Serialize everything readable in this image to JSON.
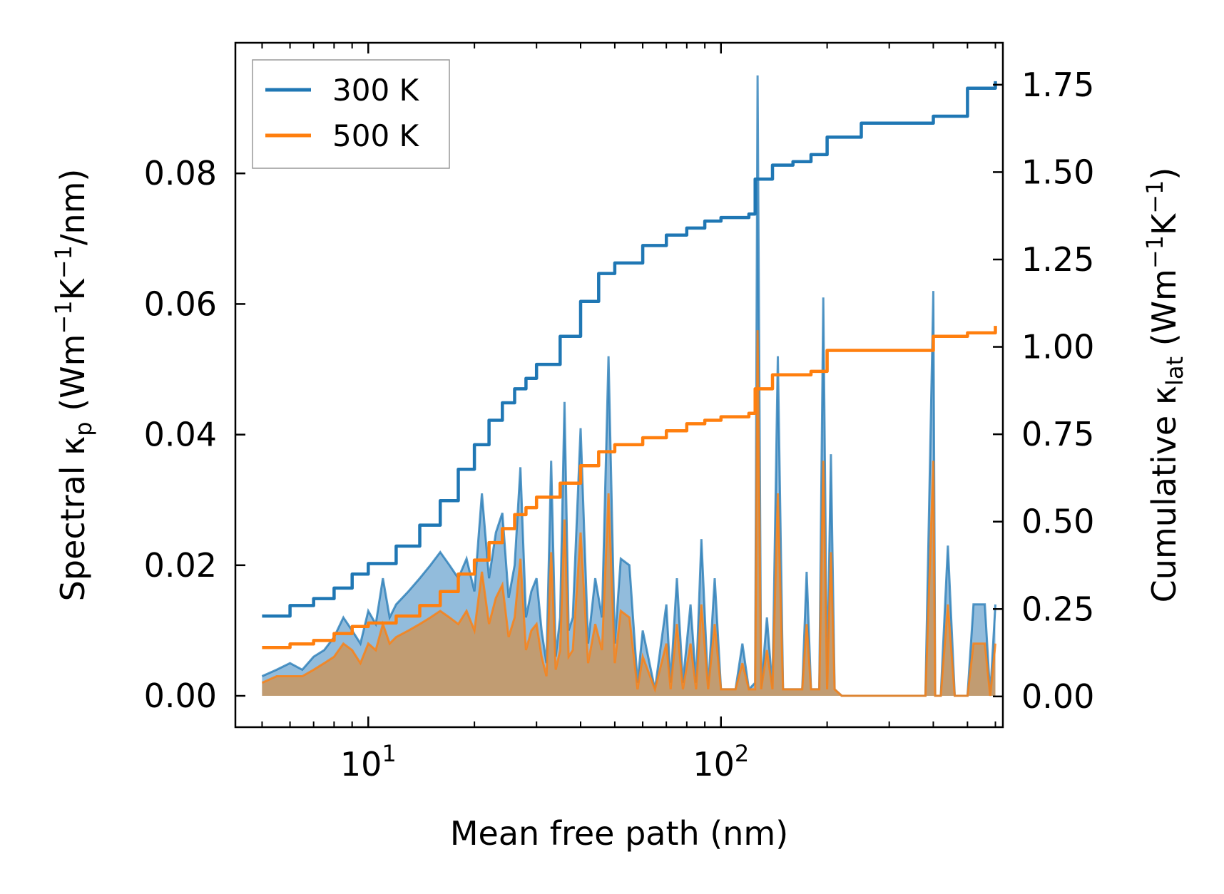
{
  "chart_data": {
    "type": "line",
    "xlabel": "Mean free path (nm)",
    "xscale": "log",
    "xlim": [
      4.2,
      630
    ],
    "x_ticks": [
      {
        "value": 10,
        "base": "10",
        "exp": "1"
      },
      {
        "value": 100,
        "base": "10",
        "exp": "2"
      }
    ],
    "ylabel_left": {
      "text": "Spectral κ",
      "sub": "p",
      "units_pre": " (Wm",
      "sup1": "−1",
      "units_mid": "K",
      "sup2": "−1",
      "units_post": "/nm)"
    },
    "ylim_left": [
      -0.0048,
      0.1
    ],
    "yticks_left": [
      "0.00",
      "0.02",
      "0.04",
      "0.06",
      "0.08"
    ],
    "yticks_left_values": [
      0,
      0.02,
      0.04,
      0.06,
      0.08
    ],
    "ylabel_right": {
      "text": "Cumulative κ",
      "sub": "lat",
      "units_pre": " (Wm",
      "sup1": "−1",
      "units_mid": "K",
      "sup2": "−1",
      "units_post": ")"
    },
    "ylim_right": [
      -0.088,
      1.87
    ],
    "yticks_right": [
      "0.00",
      "0.25",
      "0.50",
      "0.75",
      "1.00",
      "1.25",
      "1.50",
      "1.75"
    ],
    "yticks_right_values": [
      0,
      0.25,
      0.5,
      0.75,
      1.0,
      1.25,
      1.5,
      1.75
    ],
    "legend": {
      "position": "upper-left",
      "entries": [
        "300 K",
        "500 K"
      ]
    },
    "colors": {
      "300K": "#1f77b4",
      "500K": "#ff7f0e",
      "fill_300K": "#7fb0d6",
      "fill_500K": "#c49a6c"
    },
    "series": [
      {
        "name": "300 K",
        "role": "cumulative",
        "axis": "right",
        "x": [
          5,
          6,
          7,
          8,
          9,
          10,
          12,
          14,
          16,
          18,
          20,
          22,
          24,
          26,
          28,
          30,
          35,
          40,
          45,
          50,
          60,
          70,
          80,
          90,
          100,
          120,
          125,
          140,
          160,
          180,
          200,
          250,
          300,
          350,
          400,
          500,
          600
        ],
        "y": [
          0.23,
          0.26,
          0.28,
          0.31,
          0.35,
          0.38,
          0.43,
          0.49,
          0.56,
          0.65,
          0.72,
          0.79,
          0.84,
          0.88,
          0.91,
          0.95,
          1.03,
          1.13,
          1.21,
          1.24,
          1.29,
          1.32,
          1.34,
          1.36,
          1.37,
          1.38,
          1.48,
          1.52,
          1.53,
          1.55,
          1.6,
          1.64,
          1.64,
          1.64,
          1.66,
          1.74,
          1.76
        ]
      },
      {
        "name": "500 K",
        "role": "cumulative",
        "axis": "right",
        "x": [
          5,
          6,
          7,
          8,
          9,
          10,
          12,
          14,
          16,
          18,
          20,
          22,
          24,
          26,
          28,
          30,
          35,
          40,
          45,
          50,
          60,
          70,
          80,
          90,
          100,
          120,
          125,
          140,
          160,
          180,
          200,
          250,
          300,
          350,
          400,
          500,
          600
        ],
        "y": [
          0.14,
          0.15,
          0.16,
          0.18,
          0.2,
          0.21,
          0.23,
          0.26,
          0.3,
          0.35,
          0.39,
          0.44,
          0.48,
          0.52,
          0.54,
          0.57,
          0.61,
          0.66,
          0.7,
          0.72,
          0.74,
          0.76,
          0.78,
          0.79,
          0.8,
          0.81,
          0.88,
          0.92,
          0.92,
          0.93,
          0.99,
          0.99,
          0.99,
          0.99,
          1.03,
          1.04,
          1.06
        ]
      },
      {
        "name": "300 K",
        "role": "spectral",
        "axis": "left",
        "x": [
          5,
          5.5,
          6,
          6.5,
          7,
          7.5,
          8,
          8.5,
          9,
          9.5,
          10,
          10.5,
          11,
          11.5,
          12,
          13,
          14,
          15,
          16,
          17,
          18,
          19,
          20,
          21,
          22,
          23,
          24,
          25,
          26,
          27,
          28,
          29,
          30,
          31,
          32,
          33,
          34,
          35,
          36,
          37,
          38,
          40,
          42,
          44,
          46,
          48,
          50,
          52,
          55,
          58,
          60,
          65,
          70,
          72,
          75,
          78,
          82,
          85,
          88,
          92,
          96,
          100,
          110,
          115,
          120,
          125,
          127,
          130,
          135,
          140,
          145,
          150,
          160,
          170,
          175,
          180,
          190,
          195,
          200,
          205,
          210,
          220,
          240,
          300,
          380,
          400,
          405,
          410,
          420,
          440,
          460,
          480,
          500,
          520,
          560,
          580,
          600
        ],
        "y": [
          0.003,
          0.004,
          0.005,
          0.004,
          0.006,
          0.007,
          0.009,
          0.012,
          0.01,
          0.008,
          0.013,
          0.011,
          0.018,
          0.012,
          0.014,
          0.016,
          0.018,
          0.02,
          0.022,
          0.02,
          0.018,
          0.021,
          0.016,
          0.031,
          0.018,
          0.025,
          0.028,
          0.015,
          0.02,
          0.035,
          0.012,
          0.016,
          0.018,
          0.01,
          0.005,
          0.036,
          0.006,
          0.012,
          0.045,
          0.01,
          0.012,
          0.041,
          0.008,
          0.018,
          0.012,
          0.052,
          0.008,
          0.021,
          0.02,
          0.002,
          0.01,
          0.001,
          0.014,
          0.002,
          0.018,
          0.002,
          0.014,
          0.002,
          0.024,
          0.001,
          0.018,
          0.001,
          0.001,
          0.008,
          0.001,
          0.002,
          0.095,
          0.001,
          0.012,
          0.001,
          0.052,
          0.001,
          0.001,
          0.001,
          0.019,
          0.001,
          0.001,
          0.061,
          0.001,
          0.037,
          0.001,
          0.0,
          0.0,
          0.0,
          0.0,
          0.062,
          0.0,
          0.0,
          0.0,
          0.023,
          0.0,
          0.0,
          0.0,
          0.014,
          0.014,
          0.0,
          0.014
        ]
      },
      {
        "name": "500 K",
        "role": "spectral",
        "axis": "left",
        "x": [
          5,
          5.5,
          6,
          6.5,
          7,
          7.5,
          8,
          8.5,
          9,
          9.5,
          10,
          10.5,
          11,
          11.5,
          12,
          13,
          14,
          15,
          16,
          17,
          18,
          19,
          20,
          21,
          22,
          23,
          24,
          25,
          26,
          27,
          28,
          29,
          30,
          31,
          32,
          33,
          34,
          35,
          36,
          37,
          38,
          40,
          42,
          44,
          46,
          48,
          50,
          52,
          55,
          58,
          60,
          65,
          70,
          72,
          75,
          78,
          82,
          85,
          88,
          92,
          96,
          100,
          110,
          115,
          120,
          125,
          127,
          130,
          135,
          140,
          145,
          150,
          160,
          170,
          175,
          180,
          190,
          195,
          200,
          205,
          210,
          220,
          240,
          300,
          380,
          400,
          405,
          410,
          420,
          440,
          460,
          480,
          500,
          520,
          560,
          580,
          600
        ],
        "y": [
          0.002,
          0.003,
          0.003,
          0.003,
          0.004,
          0.005,
          0.006,
          0.008,
          0.007,
          0.005,
          0.008,
          0.007,
          0.011,
          0.008,
          0.009,
          0.01,
          0.011,
          0.012,
          0.013,
          0.012,
          0.011,
          0.013,
          0.01,
          0.019,
          0.011,
          0.015,
          0.017,
          0.009,
          0.012,
          0.021,
          0.007,
          0.01,
          0.011,
          0.006,
          0.003,
          0.022,
          0.004,
          0.007,
          0.027,
          0.006,
          0.007,
          0.025,
          0.005,
          0.011,
          0.007,
          0.031,
          0.005,
          0.013,
          0.012,
          0.001,
          0.006,
          0.001,
          0.008,
          0.001,
          0.011,
          0.001,
          0.008,
          0.001,
          0.014,
          0.001,
          0.011,
          0.001,
          0.001,
          0.005,
          0.001,
          0.001,
          0.056,
          0.001,
          0.007,
          0.001,
          0.031,
          0.001,
          0.001,
          0.001,
          0.011,
          0.001,
          0.001,
          0.036,
          0.001,
          0.022,
          0.001,
          0.0,
          0.0,
          0.0,
          0.0,
          0.036,
          0.0,
          0.0,
          0.0,
          0.014,
          0.0,
          0.0,
          0.0,
          0.008,
          0.008,
          0.0,
          0.008
        ]
      }
    ]
  }
}
